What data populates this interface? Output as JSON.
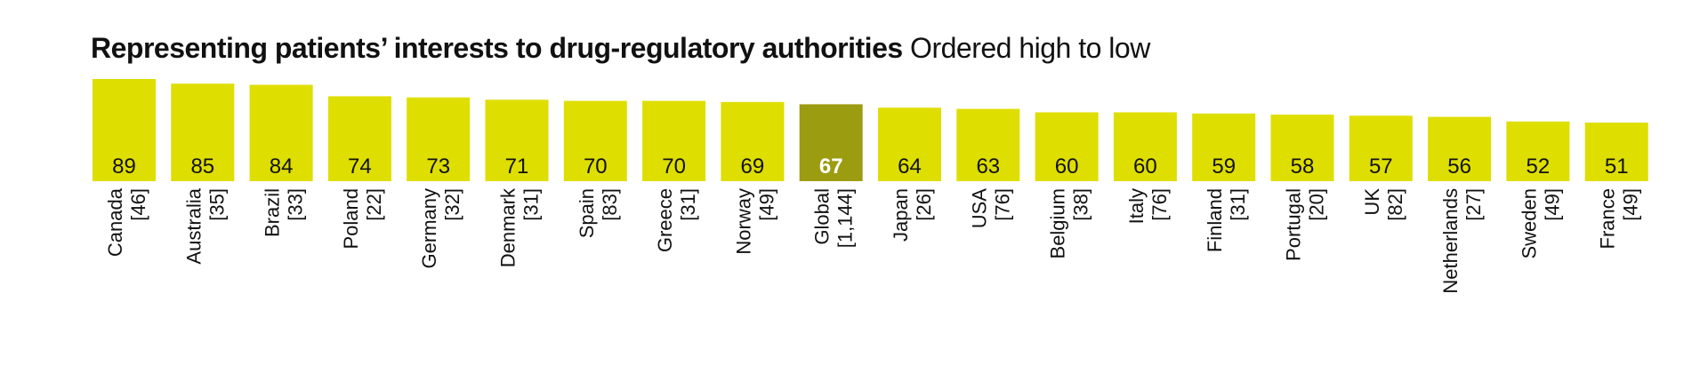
{
  "chart_data": {
    "type": "bar",
    "title": "Representing patients’ interests to drug-regulatory authorities",
    "subtitle": "Ordered high to low",
    "categories": [
      "Canada",
      "Australia",
      "Brazil",
      "Poland",
      "Germany",
      "Denmark",
      "Spain",
      "Greece",
      "Norway",
      "Global",
      "Japan",
      "USA",
      "Belgium",
      "Italy",
      "Finland",
      "Portugal",
      "UK",
      "Netherlands",
      "Sweden",
      "France"
    ],
    "counts": [
      "[46]",
      "[35]",
      "[33]",
      "[22]",
      "[32]",
      "[31]",
      "[83]",
      "[31]",
      "[49]",
      "[1,144]",
      "[26]",
      "[76]",
      "[38]",
      "[76]",
      "[31]",
      "[20]",
      "[82]",
      "[27]",
      "[49]",
      "[49]"
    ],
    "values": [
      89,
      85,
      84,
      74,
      73,
      71,
      70,
      70,
      69,
      67,
      64,
      63,
      60,
      60,
      59,
      58,
      57,
      56,
      52,
      51
    ],
    "highlight": "Global",
    "ylim": [
      0,
      89
    ],
    "colors": {
      "bar": "#dede00",
      "highlight": "#9c9c10",
      "label": "#111111",
      "highlight_label": "#ffffff"
    }
  }
}
